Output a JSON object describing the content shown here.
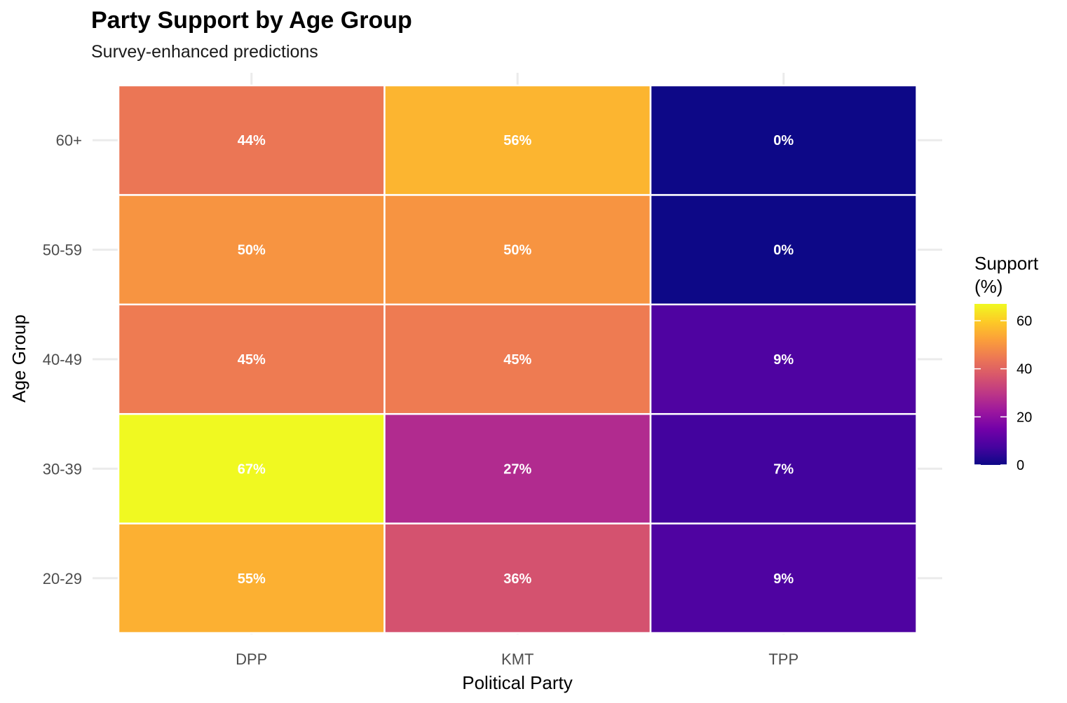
{
  "chart_data": {
    "type": "heatmap",
    "title": "Party Support by Age Group",
    "subtitle": "Survey-enhanced predictions",
    "xlabel": "Political Party",
    "ylabel": "Age Group",
    "x_categories": [
      "DPP",
      "KMT",
      "TPP"
    ],
    "y_categories": [
      "20-29",
      "30-39",
      "40-49",
      "50-59",
      "60+"
    ],
    "values": [
      {
        "age": "20-29",
        "party": "DPP",
        "value": 55,
        "label": "55%"
      },
      {
        "age": "20-29",
        "party": "KMT",
        "value": 36,
        "label": "36%"
      },
      {
        "age": "20-29",
        "party": "TPP",
        "value": 9,
        "label": "9%"
      },
      {
        "age": "30-39",
        "party": "DPP",
        "value": 67,
        "label": "67%"
      },
      {
        "age": "30-39",
        "party": "KMT",
        "value": 27,
        "label": "27%"
      },
      {
        "age": "30-39",
        "party": "TPP",
        "value": 7,
        "label": "7%"
      },
      {
        "age": "40-49",
        "party": "DPP",
        "value": 45,
        "label": "45%"
      },
      {
        "age": "40-49",
        "party": "KMT",
        "value": 45,
        "label": "45%"
      },
      {
        "age": "40-49",
        "party": "TPP",
        "value": 9,
        "label": "9%"
      },
      {
        "age": "50-59",
        "party": "DPP",
        "value": 50,
        "label": "50%"
      },
      {
        "age": "50-59",
        "party": "KMT",
        "value": 50,
        "label": "50%"
      },
      {
        "age": "50-59",
        "party": "TPP",
        "value": 0,
        "label": "0%"
      },
      {
        "age": "60+",
        "party": "DPP",
        "value": 44,
        "label": "44%"
      },
      {
        "age": "60+",
        "party": "KMT",
        "value": 56,
        "label": "56%"
      },
      {
        "age": "60+",
        "party": "TPP",
        "value": 0,
        "label": "0%"
      }
    ],
    "legend": {
      "title_lines": [
        "Support",
        "(%)"
      ],
      "ticks": [
        0,
        20,
        40,
        60
      ],
      "range": [
        0,
        67
      ],
      "position": "right"
    },
    "colorscale": "plasma",
    "colorscale_stops": [
      "#0d0887",
      "#46039f",
      "#7201a8",
      "#9c179e",
      "#bd3786",
      "#d8576b",
      "#ed7953",
      "#fb9f3a",
      "#fdca26",
      "#f0f921"
    ],
    "grid": true
  }
}
